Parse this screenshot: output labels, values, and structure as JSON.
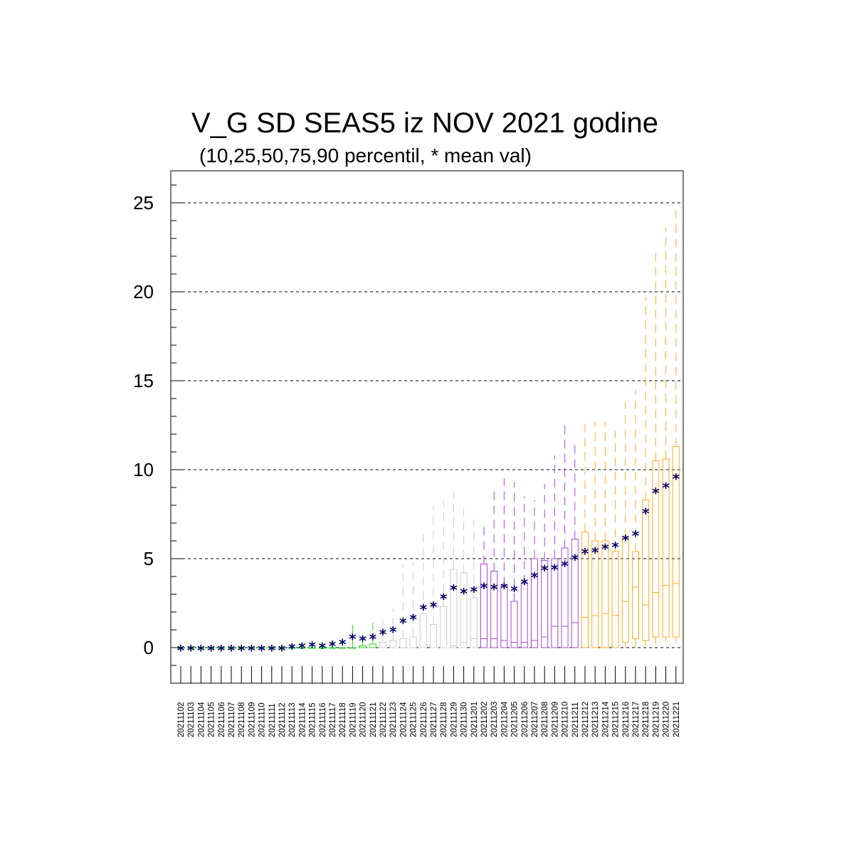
{
  "chart_data": {
    "type": "box",
    "title": "V_G SD SEAS5 iz NOV 2021 godine",
    "subtitle": "(10,25,50,75,90 percentil, * mean val)",
    "xlabel": "",
    "ylabel": "",
    "ylim": [
      -2,
      27
    ],
    "yticks": [
      "0",
      "5",
      "10",
      "15",
      "20",
      "25"
    ],
    "grid": "horizontal dashed at major y ticks",
    "mean_marker": "*",
    "mean_color": "#000066",
    "legend": "none",
    "categories": [
      "20211102",
      "20211103",
      "20211104",
      "20211105",
      "20211106",
      "20211107",
      "20211108",
      "20211109",
      "20211110",
      "20211111",
      "20211112",
      "20211113",
      "20211114",
      "20211115",
      "20211116",
      "20211117",
      "20211118",
      "20211119",
      "20211120",
      "20211121",
      "20211122",
      "20211123",
      "20211124",
      "20211125",
      "20211126",
      "20211127",
      "20211128",
      "20211129",
      "20211130",
      "20211201",
      "20211202",
      "20211203",
      "20211204",
      "20211205",
      "20211206",
      "20211207",
      "20211208",
      "20211209",
      "20211210",
      "20211211",
      "20211212",
      "20211213",
      "20211214",
      "20211215",
      "20211216",
      "20211217",
      "20211218",
      "20211219",
      "20211220",
      "20211221"
    ],
    "groups": [
      {
        "color": "#22dd22",
        "from": "20211102",
        "to": "20211121"
      },
      {
        "color": "#cccccc",
        "from": "20211122",
        "to": "20211201"
      },
      {
        "color": "#aa44dd",
        "from": "20211202",
        "to": "20211211"
      },
      {
        "color": "#ffaa22",
        "from": "20211212",
        "to": "20211221"
      }
    ],
    "p10": [
      0,
      0,
      0,
      0,
      0,
      0,
      0,
      0,
      0,
      0,
      0,
      0,
      0,
      0,
      0,
      0,
      0,
      0,
      0,
      0,
      0,
      0,
      0,
      0,
      0,
      0,
      0,
      0,
      0,
      0,
      0,
      0,
      0,
      0,
      0,
      0,
      0,
      0,
      0,
      0,
      0,
      0,
      0,
      0,
      0,
      0,
      0.1,
      0.2,
      0.3,
      0.3
    ],
    "p25": [
      0,
      0,
      0,
      0,
      0,
      0,
      0,
      0,
      0,
      0,
      0,
      0,
      0,
      0,
      0,
      0,
      0,
      0,
      0,
      0,
      0,
      0,
      0,
      0,
      0,
      0,
      0,
      0,
      0,
      0,
      0,
      0,
      0,
      0,
      0,
      0,
      0,
      0,
      0,
      0,
      0,
      0,
      0,
      0,
      0.3,
      0.5,
      0.4,
      0.6,
      0.6,
      0.6
    ],
    "p50": [
      0,
      0,
      0,
      0,
      0,
      0,
      0,
      0,
      0,
      0,
      0,
      0,
      0,
      0,
      0,
      0,
      0,
      0,
      0,
      0,
      0,
      0,
      0,
      0,
      0,
      0,
      0,
      0.1,
      0.3,
      0.5,
      0.5,
      0.5,
      0.4,
      0.3,
      0.3,
      0.4,
      0.6,
      1.2,
      1.2,
      1.4,
      1.7,
      1.8,
      1.9,
      1.8,
      2.6,
      3.4,
      2.4,
      3.1,
      3.5,
      3.6
    ],
    "p75": [
      0,
      0,
      0,
      0,
      0,
      0,
      0,
      0,
      0,
      0,
      0,
      0,
      0,
      0,
      0,
      0,
      0,
      0,
      0.1,
      0.2,
      0.3,
      0.4,
      0.5,
      0.6,
      1.9,
      1.3,
      2.3,
      4.4,
      4.2,
      2.8,
      4.7,
      4.3,
      3.5,
      2.6,
      3.6,
      5.0,
      4.9,
      5.0,
      5.6,
      6.1,
      6.5,
      6.0,
      6.0,
      5.4,
      6.2,
      5.4,
      8.3,
      10.5,
      10.6,
      11.3
    ],
    "p90": [
      0,
      0,
      0,
      0,
      0,
      0,
      0,
      0,
      0,
      0,
      0,
      0,
      0,
      0,
      0,
      0,
      0,
      1.3,
      0.4,
      1.4,
      1.7,
      2.2,
      4.7,
      4.8,
      6.6,
      8.0,
      8.3,
      8.8,
      7.8,
      7.2,
      7.0,
      8.9,
      9.5,
      9.3,
      8.5,
      8.3,
      9.2,
      10.8,
      12.5,
      11.7,
      12.6,
      12.7,
      12.7,
      12.2,
      13.8,
      14.5,
      19.7,
      22.2,
      23.6,
      24.9
    ],
    "mean": [
      0,
      0,
      0,
      0,
      0,
      0,
      0,
      0,
      0,
      0,
      0,
      0.1,
      0.15,
      0.2,
      0.15,
      0.25,
      0.35,
      0.65,
      0.55,
      0.65,
      0.9,
      1.05,
      1.55,
      1.75,
      2.3,
      2.45,
      2.9,
      3.4,
      3.2,
      3.3,
      3.5,
      3.45,
      3.5,
      3.35,
      3.75,
      4.1,
      4.5,
      4.55,
      4.75,
      5.1,
      5.45,
      5.5,
      5.7,
      5.8,
      6.2,
      6.45,
      7.7,
      8.85,
      9.15,
      9.65
    ]
  }
}
